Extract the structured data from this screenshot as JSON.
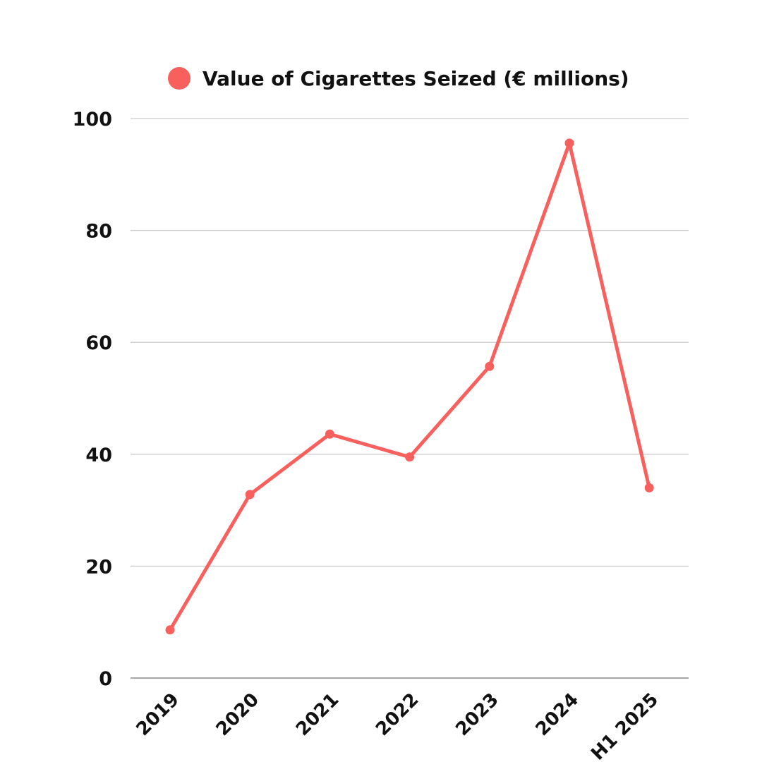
{
  "colors": {
    "series": "#f8605e",
    "grid": "#cccccc",
    "baseline": "#888888",
    "text": "#111111"
  },
  "chart_data": {
    "type": "line",
    "categories": [
      "2019",
      "2020",
      "2021",
      "2022",
      "2023",
      "2024",
      "H1 2025"
    ],
    "series": [
      {
        "name": "Value of Cigarettes Seized (€ millions)",
        "values": [
          8.6,
          32.8,
          43.6,
          39.5,
          55.7,
          95.6,
          34.0
        ]
      }
    ],
    "ylim": [
      0,
      100
    ],
    "yticks": [
      "0",
      "20",
      "40",
      "60",
      "80",
      "100"
    ],
    "grid": true,
    "legend": "top-center",
    "title": "",
    "xlabel": "",
    "ylabel": ""
  }
}
